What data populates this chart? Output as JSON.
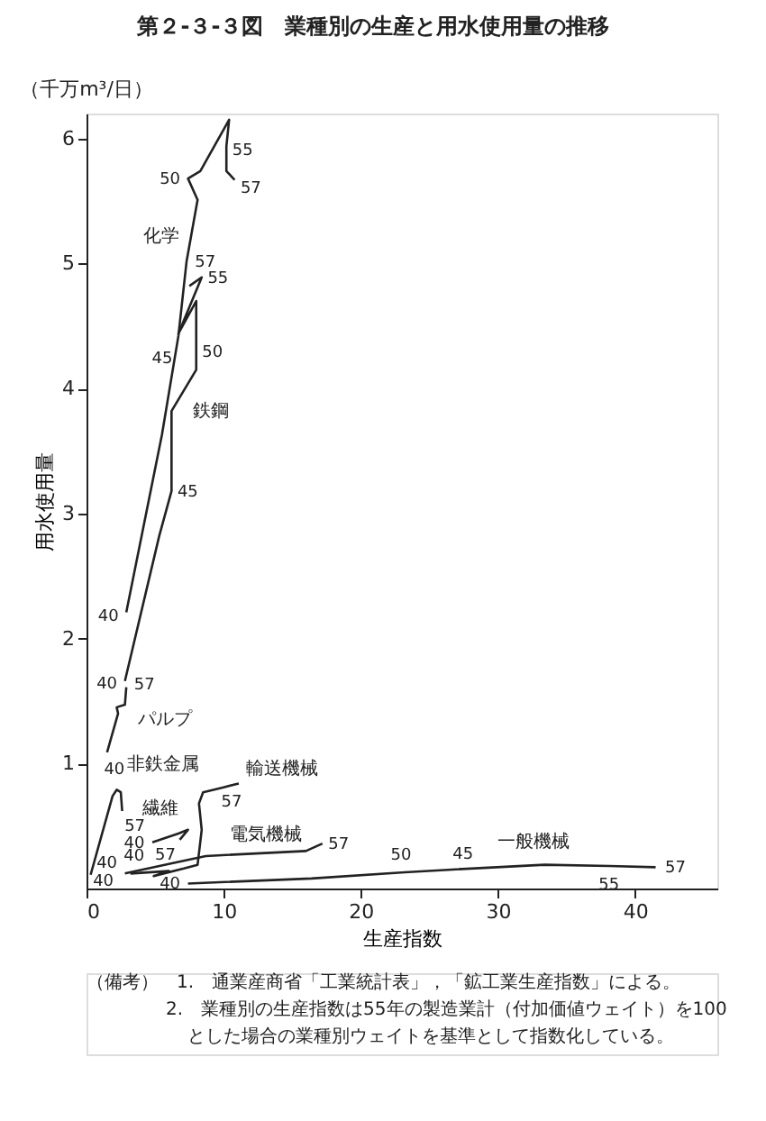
{
  "chart_data": {
    "type": "line",
    "title": "第２-３-３図　業種別の生産と用水使用量の推移",
    "xlabel": "生産指数",
    "ylabel": "用水使用量",
    "xlim": [
      0,
      46
    ],
    "xticks": [
      0,
      10,
      20,
      30,
      40
    ],
    "ylim": [
      0,
      6.2
    ],
    "yticks": [
      1,
      2,
      3,
      4,
      5,
      6
    ],
    "grid": false,
    "legend": false,
    "marker": "none",
    "line_style": "solid",
    "series": [
      {
        "name": "化学",
        "color": "#222222",
        "x": [
          2.9,
          5.5,
          6.7,
          7.3,
          8.1,
          7.4,
          8.3,
          10.4,
          10.2,
          10.2,
          10.8
        ],
        "values": [
          2.21,
          3.63,
          4.42,
          5.02,
          5.51,
          5.68,
          5.74,
          6.15,
          5.94,
          5.74,
          5.67
        ]
      },
      {
        "name": "鉄鋼",
        "color": "#222222",
        "x": [
          2.8,
          5.3,
          6.2,
          6.2,
          8.0,
          8.0,
          6.7,
          8.4,
          7.5
        ],
        "values": [
          1.66,
          2.82,
          3.18,
          3.82,
          4.15,
          4.7,
          4.44,
          4.89,
          4.82
        ]
      },
      {
        "name": "パルプ",
        "color": "#222222",
        "x": [
          1.5,
          2.3,
          2.2,
          2.8,
          2.9
        ],
        "values": [
          1.09,
          1.4,
          1.45,
          1.47,
          1.61
        ]
      },
      {
        "name": "非鉄金属",
        "color": "#222222",
        "x": [
          0.3,
          1.9,
          2.2,
          2.5,
          2.6
        ],
        "values": [
          0.11,
          0.74,
          0.79,
          0.77,
          0.62
        ]
      },
      {
        "name": "繊維",
        "color": "#222222",
        "x": [
          4.8,
          6.7,
          7.4,
          6.8
        ],
        "values": [
          0.37,
          0.44,
          0.47,
          0.39
        ]
      },
      {
        "name": "輸送機械",
        "color": "#222222",
        "x": [
          3.2,
          6.0,
          4.9,
          7.1,
          8.1,
          8.4,
          8.2,
          8.5,
          10.0,
          11.1
        ],
        "values": [
          0.12,
          0.14,
          0.1,
          0.16,
          0.19,
          0.47,
          0.68,
          0.77,
          0.81,
          0.84
        ]
      },
      {
        "name": "電気機械",
        "color": "#222222",
        "x": [
          2.8,
          7.0,
          8.7,
          16.0,
          17.2
        ],
        "values": [
          0.12,
          0.22,
          0.26,
          0.3,
          0.36
        ]
      },
      {
        "name": "一般機械",
        "color": "#222222",
        "x": [
          7.4,
          16.4,
          23.2,
          26.4,
          33.4,
          38.1,
          41.5
        ],
        "values": [
          0.04,
          0.08,
          0.13,
          0.15,
          0.19,
          0.18,
          0.17
        ]
      }
    ],
    "annotations": [
      "（千万m³/日）",
      "（備考）　1.　通業産商省「工業統計表」，「鉱工業生産指数」による。",
      "2.　業種別の生産指数は55年の製造業計（付加価値ウェイト）を100とした場合の業種別ウェイトを基準として指数化している。",
      {
        "text": "40",
        "x": 2.9,
        "y": 2.21
      },
      {
        "text": "45",
        "x": 6.7,
        "y": 4.42
      },
      {
        "text": "50",
        "x": 7.4,
        "y": 5.68
      },
      {
        "text": "55",
        "x": 10.2,
        "y": 5.94
      },
      {
        "text": "57",
        "x": 10.8,
        "y": 5.67
      },
      {
        "text": "40",
        "x": 2.8,
        "y": 1.66
      },
      {
        "text": "45",
        "x": 6.2,
        "y": 3.18
      },
      {
        "text": "50",
        "x": 8.0,
        "y": 4.15
      },
      {
        "text": "55",
        "x": 8.4,
        "y": 4.89
      },
      {
        "text": "57",
        "x": 8.0,
        "y": 4.7
      },
      {
        "text": "40",
        "x": 1.5,
        "y": 1.09
      },
      {
        "text": "57",
        "x": 2.9,
        "y": 1.61
      },
      {
        "text": "40",
        "x": 0.3,
        "y": 0.11
      },
      {
        "text": "57",
        "x": 2.6,
        "y": 0.62
      },
      {
        "text": "40",
        "x": 4.8,
        "y": 0.37
      },
      {
        "text": "57",
        "x": 6.8,
        "y": 0.39
      },
      {
        "text": "40",
        "x": 3.2,
        "y": 0.12
      },
      {
        "text": "57",
        "x": 11.1,
        "y": 0.84
      },
      {
        "text": "40",
        "x": 2.8,
        "y": 0.12
      },
      {
        "text": "57",
        "x": 17.2,
        "y": 0.36
      },
      {
        "text": "40",
        "x": 7.4,
        "y": 0.04
      },
      {
        "text": "45",
        "x": 26.4,
        "y": 0.15
      },
      {
        "text": "50",
        "x": 23.2,
        "y": 0.13
      },
      {
        "text": "55",
        "x": 38.1,
        "y": 0.18
      },
      {
        "text": "57",
        "x": 41.5,
        "y": 0.17
      }
    ]
  }
}
